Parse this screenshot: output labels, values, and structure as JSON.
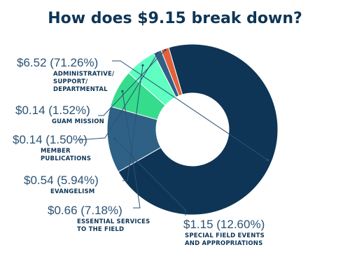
{
  "title": "How does $9.15 break down?",
  "chart_data": {
    "type": "pie",
    "donut": true,
    "title": "How does $9.15 break down?",
    "slices": [
      {
        "value_label": "$6.52 (71.26%)",
        "category": "ADMINISTRATIVE/\nSUPPORT/\nDEPARTMENTAL",
        "value": 6.52,
        "percent": 71.26,
        "color": "#0e3555"
      },
      {
        "value_label": "$1.15 (12.60%)",
        "category": "SPECIAL FIELD EVENTS\nAND APPROPRIATIONS",
        "value": 1.15,
        "percent": 12.6,
        "color": "#2f6186"
      },
      {
        "value_label": "$0.66 (7.18%)",
        "category": "ESSENTIAL SERVICES\nTO THE FIELD",
        "value": 0.66,
        "percent": 7.18,
        "color": "#35dc8c"
      },
      {
        "value_label": "$0.54 (5.94%)",
        "category": "EVANGELISM",
        "value": 0.54,
        "percent": 5.94,
        "color": "#5effc0"
      },
      {
        "value_label": "$0.14 (1.50%)",
        "category": "MEMBER\nPUBLICATIONS",
        "value": 0.14,
        "percent": 1.5,
        "color": "#2f6186"
      },
      {
        "value_label": "$0.14 (1.52%)",
        "category": "GUAM MISSION",
        "value": 0.14,
        "percent": 1.52,
        "color": "#e2603c"
      }
    ]
  }
}
